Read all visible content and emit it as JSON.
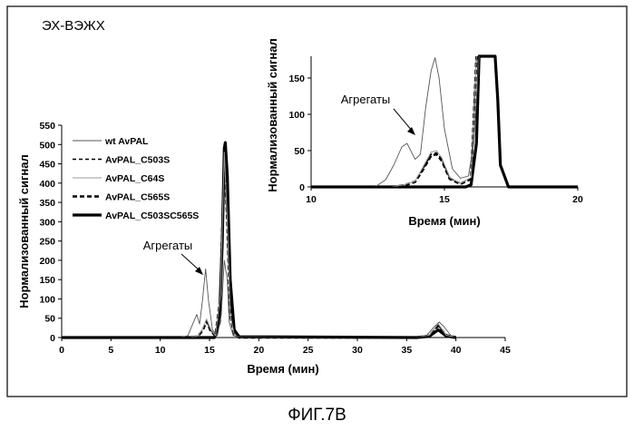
{
  "figure": {
    "panel_label": "ЭХ-ВЭЖХ",
    "caption": "ФИГ.7В"
  },
  "chart_data": [
    {
      "type": "line",
      "name_hint": "main",
      "xlabel": "Время (мин)",
      "ylabel": "Нормализованный сигнал",
      "xlim": [
        0,
        45
      ],
      "ylim": [
        0,
        550
      ],
      "xticks": [
        0,
        5,
        10,
        15,
        20,
        25,
        30,
        35,
        40,
        45
      ],
      "yticks": [
        0,
        50,
        100,
        150,
        200,
        250,
        300,
        350,
        400,
        450,
        500,
        550
      ],
      "grid": false,
      "legend_position": "top-left",
      "annotation": {
        "text": "Агрегаты",
        "x": 14.5,
        "y": 180
      },
      "series": [
        {
          "name": "wt AvPAL",
          "style": "thin",
          "x": [
            0,
            12,
            12.8,
            13.3,
            13.7,
            14.0,
            14.3,
            14.6,
            14.9,
            15.3,
            15.8,
            16.2,
            16.5,
            16.8,
            17.0,
            17.4,
            18,
            30,
            36,
            37,
            37.8,
            38.3,
            38.8,
            39.5,
            40
          ],
          "y": [
            0,
            0,
            5,
            35,
            60,
            35,
            100,
            178,
            95,
            20,
            5,
            60,
            200,
            150,
            40,
            5,
            2,
            0,
            0,
            5,
            28,
            40,
            28,
            5,
            0
          ]
        },
        {
          "name": "AvPAL_C503S",
          "style": "dashed",
          "x": [
            0,
            13,
            13.8,
            14.3,
            14.7,
            15.1,
            15.6,
            16.1,
            16.5,
            16.8,
            17.1,
            17.5,
            18,
            36,
            37.3,
            38.2,
            39.0,
            40
          ],
          "y": [
            0,
            0,
            3,
            20,
            45,
            20,
            5,
            100,
            470,
            300,
            60,
            8,
            0,
            0,
            5,
            32,
            6,
            0
          ]
        },
        {
          "name": "AvPAL_C64S",
          "style": "thin-gray",
          "x": [
            0,
            13,
            13.8,
            14.3,
            14.7,
            15.1,
            15.6,
            16.1,
            16.5,
            16.8,
            17.1,
            17.5,
            18,
            36,
            37.3,
            38.2,
            39.0,
            40
          ],
          "y": [
            0,
            0,
            4,
            22,
            48,
            22,
            5,
            110,
            480,
            300,
            60,
            8,
            0,
            0,
            6,
            36,
            6,
            0
          ]
        },
        {
          "name": "AvPAL_C565S",
          "style": "thick-dashed",
          "x": [
            0,
            13,
            13.8,
            14.3,
            14.7,
            15.1,
            15.6,
            16.1,
            16.5,
            16.8,
            17.1,
            17.5,
            18,
            36,
            37.3,
            38.2,
            39.0,
            40
          ],
          "y": [
            0,
            0,
            3,
            18,
            42,
            18,
            4,
            105,
            475,
            300,
            60,
            8,
            0,
            0,
            5,
            30,
            6,
            0
          ]
        },
        {
          "name": "AvPAL_C503SC565S",
          "style": "thick",
          "x": [
            0,
            15.5,
            16.0,
            16.3,
            16.5,
            16.6,
            16.8,
            17.1,
            17.5,
            18,
            36,
            37.3,
            38.2,
            39.0,
            40
          ],
          "y": [
            0,
            0,
            40,
            250,
            490,
            505,
            420,
            150,
            20,
            2,
            0,
            3,
            20,
            4,
            0
          ]
        }
      ]
    },
    {
      "type": "line",
      "name_hint": "inset",
      "xlabel": "Время (мин)",
      "ylabel": "Нормализованный сигнал",
      "xlim": [
        10,
        20
      ],
      "ylim": [
        0,
        180
      ],
      "xticks": [
        10,
        15,
        20
      ],
      "yticks": [
        0,
        50,
        100,
        150
      ],
      "grid": false,
      "annotation": {
        "text": "Агрегаты",
        "x": 13.5,
        "y": 60
      },
      "series": [
        {
          "name": "wt AvPAL",
          "style": "thin",
          "x": [
            10,
            12.4,
            12.8,
            13.1,
            13.4,
            13.6,
            13.9,
            14.1,
            14.3,
            14.5,
            14.65,
            14.8,
            15.0,
            15.3,
            15.6,
            15.9,
            16.1,
            16.3
          ],
          "y": [
            0,
            0,
            10,
            30,
            55,
            60,
            38,
            45,
            110,
            160,
            178,
            150,
            80,
            25,
            12,
            15,
            60,
            180
          ]
        },
        {
          "name": "AvPAL_C503S",
          "style": "dashed",
          "x": [
            10,
            13.0,
            13.5,
            13.9,
            14.2,
            14.5,
            14.7,
            14.9,
            15.2,
            15.6,
            16.0,
            16.2
          ],
          "y": [
            0,
            0,
            3,
            8,
            25,
            45,
            47,
            38,
            12,
            5,
            12,
            180
          ]
        },
        {
          "name": "AvPAL_C64S",
          "style": "thin-gray",
          "x": [
            10,
            13.0,
            13.5,
            13.9,
            14.2,
            14.5,
            14.7,
            14.9,
            15.2,
            15.6,
            16.0,
            16.2
          ],
          "y": [
            0,
            0,
            3,
            8,
            28,
            48,
            50,
            40,
            13,
            5,
            13,
            180
          ]
        },
        {
          "name": "AvPAL_C565S",
          "style": "thick-dashed",
          "x": [
            10,
            13.0,
            13.5,
            13.9,
            14.2,
            14.5,
            14.7,
            14.9,
            15.2,
            15.6,
            16.0,
            16.2
          ],
          "y": [
            0,
            0,
            2,
            7,
            24,
            43,
            45,
            36,
            11,
            4,
            11,
            180
          ]
        },
        {
          "name": "AvPAL_C503SC565S",
          "style": "thick",
          "x": [
            10,
            15.8,
            16.0,
            16.2,
            16.3,
            16.9,
            17.0,
            17.1,
            17.4,
            20
          ],
          "y": [
            0,
            0,
            3,
            60,
            180,
            180,
            120,
            30,
            0,
            0
          ]
        }
      ]
    }
  ]
}
